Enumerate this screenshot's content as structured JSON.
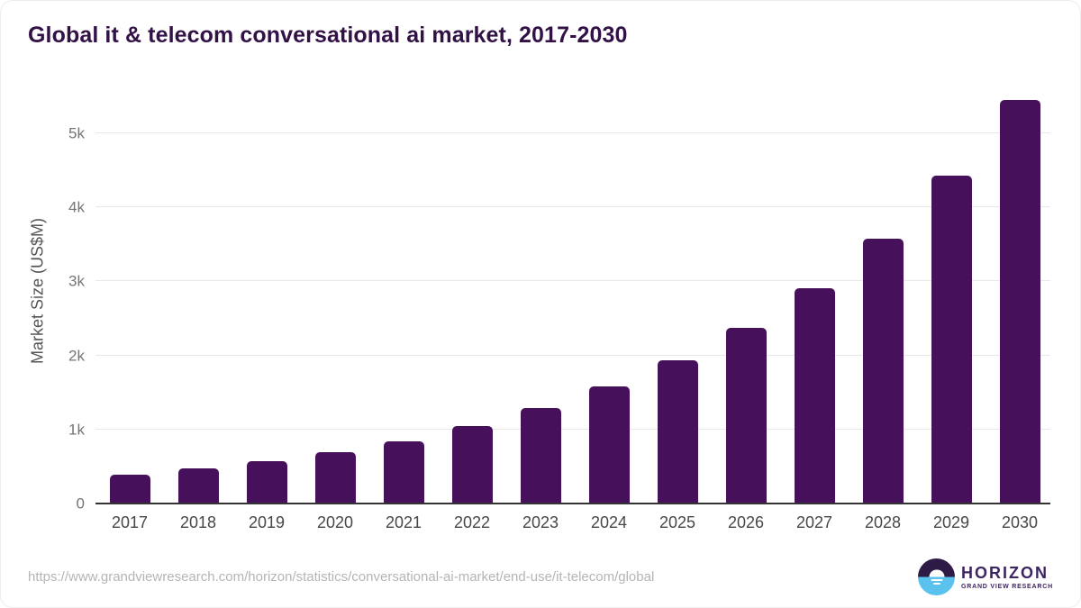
{
  "title": "Global it & telecom conversational ai market, 2017-2030",
  "colors": {
    "bar": "#46115a",
    "title": "#321246",
    "axis_line": "#333333",
    "gridline": "#e8e8e8",
    "tick_label": "#757575",
    "x_label": "#474747",
    "url_text": "#b5b5b5",
    "logo_purple": "#2d1a45",
    "logo_blue": "#5bc2ee",
    "logo_text": "#3d2462"
  },
  "chart_data": {
    "type": "bar",
    "title": "Global it & telecom conversational ai market, 2017-2030",
    "categories": [
      "2017",
      "2018",
      "2019",
      "2020",
      "2021",
      "2022",
      "2023",
      "2024",
      "2025",
      "2026",
      "2027",
      "2028",
      "2029",
      "2030"
    ],
    "values": [
      385,
      470,
      570,
      690,
      845,
      1045,
      1290,
      1580,
      1935,
      2375,
      2910,
      3580,
      4420,
      5450
    ],
    "xlabel": "",
    "ylabel": "Market Size (US$M)",
    "ylim": [
      0,
      5690
    ],
    "yticks": [
      {
        "value": 0,
        "label": "0"
      },
      {
        "value": 1000,
        "label": "1k"
      },
      {
        "value": 2000,
        "label": "2k"
      },
      {
        "value": 3000,
        "label": "3k"
      },
      {
        "value": 4000,
        "label": "4k"
      },
      {
        "value": 5000,
        "label": "5k"
      }
    ],
    "grid": true,
    "legend": false,
    "bar_color": "#46115a"
  },
  "footer": {
    "source_url": "https://www.grandviewresearch.com/horizon/statistics/conversational-ai-market/end-use/it-telecom/global",
    "logo": {
      "brand": "HORIZON",
      "subbrand": "GRAND VIEW RESEARCH",
      "icon": "horizon-sunset-circle-icon"
    }
  }
}
